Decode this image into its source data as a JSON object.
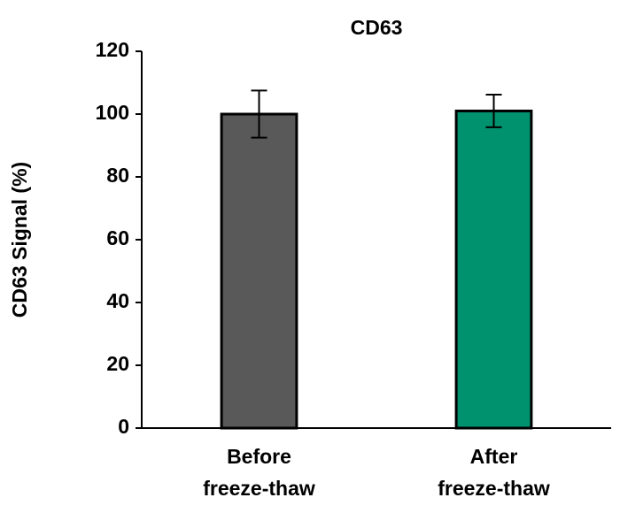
{
  "chart_data": {
    "type": "bar",
    "title": "CD63",
    "y_label": "CD63 Signal (%)",
    "categories": [
      "Before freeze-thaw",
      "After freeze-thaw"
    ],
    "values": [
      100,
      101
    ],
    "errors": [
      7.5,
      5.2
    ],
    "colors": [
      "#595959",
      "#00916e"
    ],
    "ylim": [
      0,
      120
    ],
    "yticks": [
      0,
      20,
      40,
      60,
      80,
      100,
      120
    ],
    "grid": false
  }
}
